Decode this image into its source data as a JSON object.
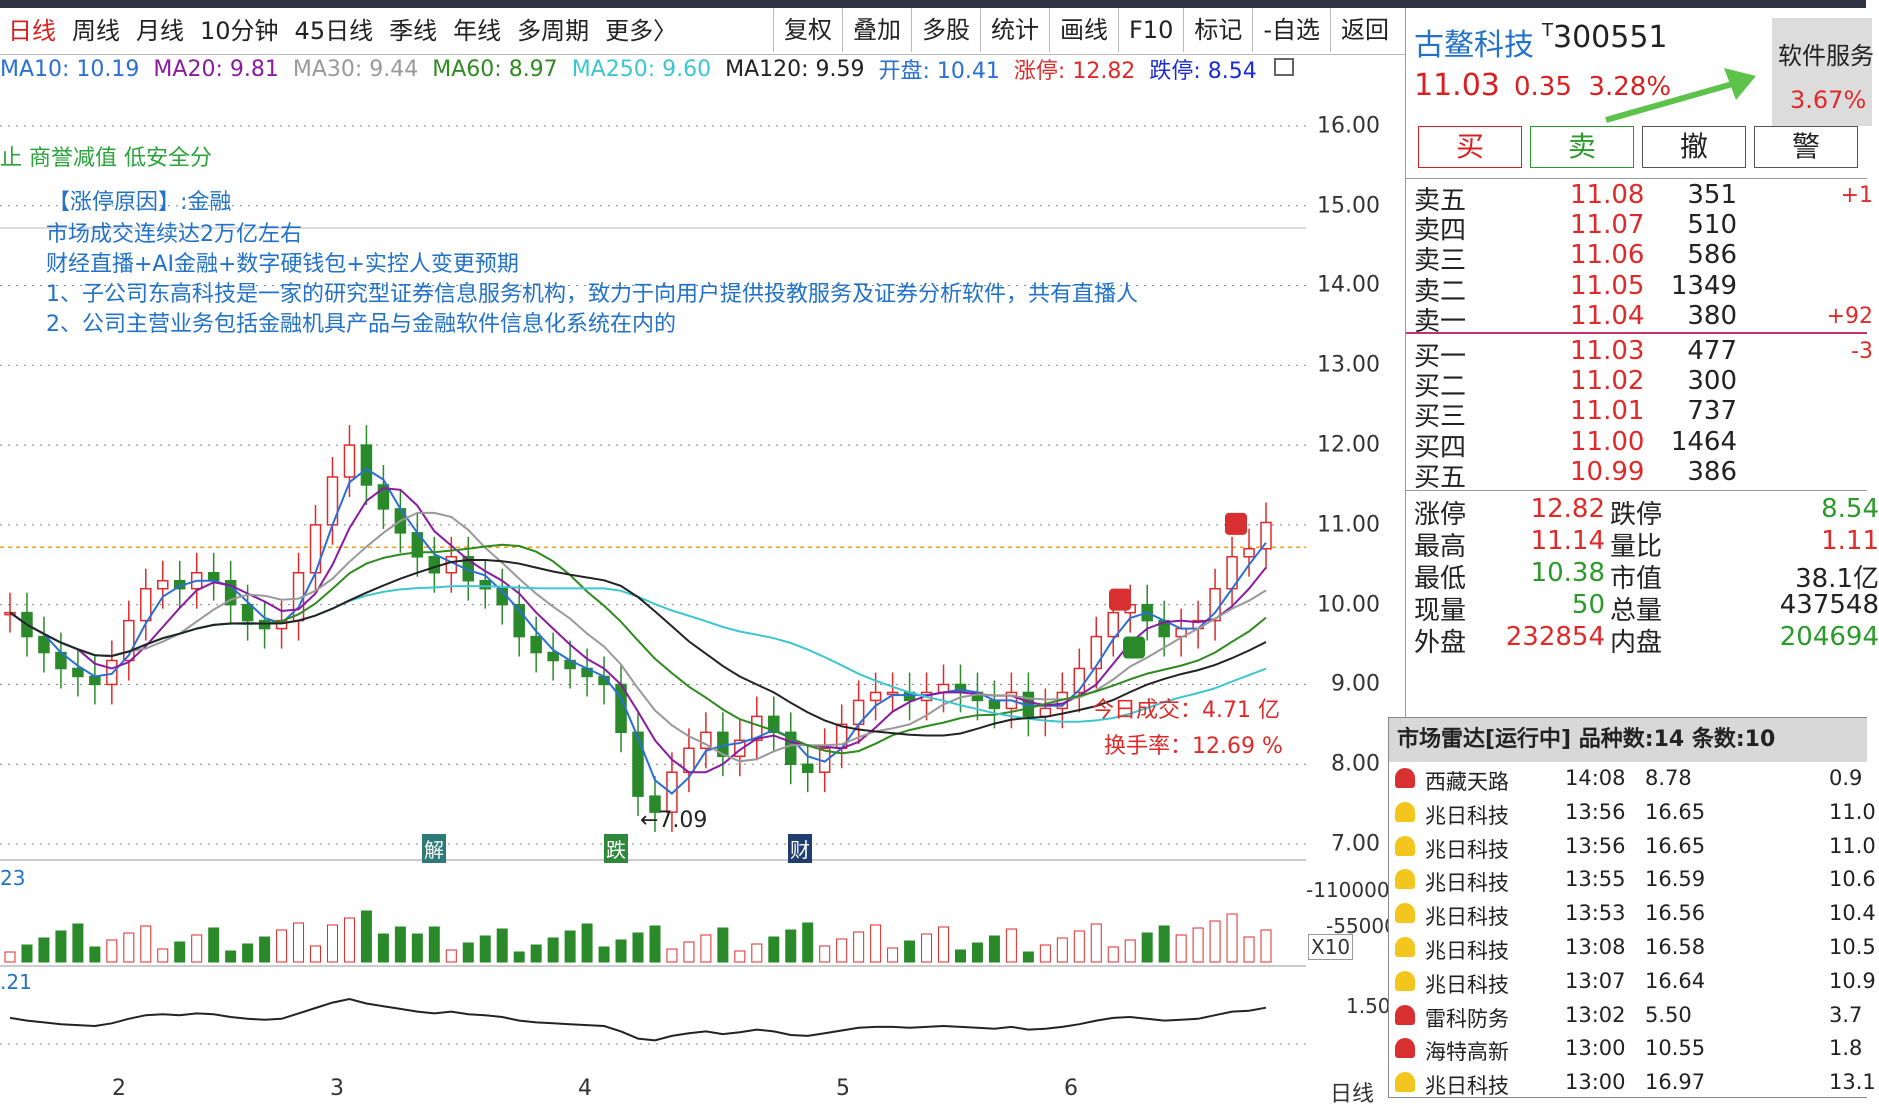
{
  "tabs": [
    "日线",
    "周线",
    "月线",
    "10分钟",
    "45日线",
    "季线",
    "年线",
    "多周期",
    "更多〉"
  ],
  "tools": [
    "复权",
    "叠加",
    "多股",
    "统计",
    "画线",
    "F10",
    "标记",
    "-自选",
    "返回"
  ],
  "ma": [
    {
      "text": "MA10: 10.19",
      "color": "#2a6fd6"
    },
    {
      "text": "MA20: 9.81",
      "color": "#8a1aa0"
    },
    {
      "text": "MA30: 9.44",
      "color": "#999999"
    },
    {
      "text": "MA60: 8.97",
      "color": "#2f8a1f"
    },
    {
      "text": "MA250: 9.60",
      "color": "#3cc6d0"
    },
    {
      "text": "MA120: 9.59",
      "color": "#222222"
    },
    {
      "text": "开盘: 10.41",
      "color": "#2a6fd6"
    },
    {
      "text": "涨停: 12.82",
      "color": "#e02a2a"
    },
    {
      "text": "跌停: 8.54",
      "color": "#1a2bd6"
    }
  ],
  "price_axis": [
    "16.00",
    "15.00",
    "14.00",
    "13.00",
    "12.00",
    "11.00",
    "10.00",
    "9.00",
    "8.00",
    "7.00"
  ],
  "annotations": {
    "tag_line": "止 商誉减值 低安全分",
    "reason": "【涨停原因】:金融",
    "line1": "市场成交连续达2万亿左右",
    "line2": "财经直播+AI金融+数字硬钱包+实控人变更预期",
    "line3": "1、子公司东高科技是一家的研究型证券信息服务机构，致力于向用户提供投教服务及证券分析软件，共有直播人",
    "line4": "2、公司主营业务包括金融机具产品与金融软件信息化系统在内的",
    "low_mark": "←7.09",
    "turnover_today": "今日成交：4.71 亿",
    "turnover_rate": "换手率：12.69 %",
    "event1": "解",
    "event2": "跌",
    "event3": "财"
  },
  "volume": {
    "left_label": "23",
    "axis_top": "-110000",
    "axis_mid": "-55000",
    "scale": "X10"
  },
  "indicator": {
    "left_label": ".21",
    "axis_val": "1.50"
  },
  "months": [
    "2",
    "3",
    "4",
    "5",
    "6"
  ],
  "period_label": "日线",
  "stock": {
    "name": "古鳌科技",
    "prefix": "T",
    "code": "300551",
    "price": "11.03",
    "change": "0.35",
    "pct": "3.28%",
    "sector": "软件服务",
    "sector_pct": "3.67%"
  },
  "trade_buttons": [
    "买",
    "卖",
    "撤",
    "警"
  ],
  "sell_orders": [
    {
      "label": "卖五",
      "price": "11.08",
      "vol": "351",
      "delta": "+1"
    },
    {
      "label": "卖四",
      "price": "11.07",
      "vol": "510",
      "delta": ""
    },
    {
      "label": "卖三",
      "price": "11.06",
      "vol": "586",
      "delta": ""
    },
    {
      "label": "卖二",
      "price": "11.05",
      "vol": "1349",
      "delta": ""
    },
    {
      "label": "卖一",
      "price": "11.04",
      "vol": "380",
      "delta": "+92"
    }
  ],
  "buy_orders": [
    {
      "label": "买一",
      "price": "11.03",
      "vol": "477",
      "delta": "-3"
    },
    {
      "label": "买二",
      "price": "11.02",
      "vol": "300",
      "delta": ""
    },
    {
      "label": "买三",
      "price": "11.01",
      "vol": "737",
      "delta": ""
    },
    {
      "label": "买四",
      "price": "11.00",
      "vol": "1464",
      "delta": ""
    },
    {
      "label": "买五",
      "price": "10.99",
      "vol": "386",
      "delta": ""
    }
  ],
  "stats": [
    {
      "l1": "涨停",
      "v1": "12.82",
      "c1": "#e02a2a",
      "l2": "跌停",
      "v2": "8.54",
      "c2": "#2a9a2a"
    },
    {
      "l1": "最高",
      "v1": "11.14",
      "c1": "#e02a2a",
      "l2": "量比",
      "v2": "1.11",
      "c2": "#e02a2a"
    },
    {
      "l1": "最低",
      "v1": "10.38",
      "c1": "#2a9a2a",
      "l2": "市值",
      "v2": "38.1亿",
      "c2": "#222222"
    },
    {
      "l1": "现量",
      "v1": "50",
      "c1": "#2a9a2a",
      "l2": "总量",
      "v2": "437548",
      "c2": "#222222"
    },
    {
      "l1": "外盘",
      "v1": "232854",
      "c1": "#e02a2a",
      "l2": "内盘",
      "v2": "204694",
      "c2": "#2a9a2a"
    }
  ],
  "radar": {
    "title": "市场雷达[运行中] 品种数:14 条数:10",
    "rows": [
      {
        "name": "西藏天路",
        "time": "14:08",
        "price": "8.78",
        "extra": "0.9",
        "bell": "red"
      },
      {
        "name": "兆日科技",
        "time": "13:56",
        "price": "16.65",
        "extra": "11.0",
        "bell": "yellow"
      },
      {
        "name": "兆日科技",
        "time": "13:56",
        "price": "16.65",
        "extra": "11.0",
        "bell": "yellow"
      },
      {
        "name": "兆日科技",
        "time": "13:55",
        "price": "16.59",
        "extra": "10.6",
        "bell": "yellow"
      },
      {
        "name": "兆日科技",
        "time": "13:53",
        "price": "16.56",
        "extra": "10.4",
        "bell": "yellow"
      },
      {
        "name": "兆日科技",
        "time": "13:08",
        "price": "16.58",
        "extra": "10.5",
        "bell": "yellow"
      },
      {
        "name": "兆日科技",
        "time": "13:07",
        "price": "16.64",
        "extra": "10.9",
        "bell": "yellow"
      },
      {
        "name": "雷科防务",
        "time": "13:02",
        "price": "5.50",
        "extra": "3.7",
        "bell": "red"
      },
      {
        "name": "海特高新",
        "time": "13:00",
        "price": "10.55",
        "extra": "1.8",
        "bell": "red"
      },
      {
        "name": "兆日科技",
        "time": "13:00",
        "price": "16.97",
        "extra": "13.1",
        "bell": "yellow"
      }
    ]
  },
  "chart_data": {
    "type": "candlestick",
    "ylim": [
      6.8,
      16.5
    ],
    "ma_names": [
      "MA10",
      "MA20",
      "MA30",
      "MA60",
      "MA250",
      "MA120"
    ],
    "latest": {
      "open": 10.41,
      "high": 11.14,
      "low": 10.38,
      "close": 11.03
    },
    "low_point": 7.09
  }
}
